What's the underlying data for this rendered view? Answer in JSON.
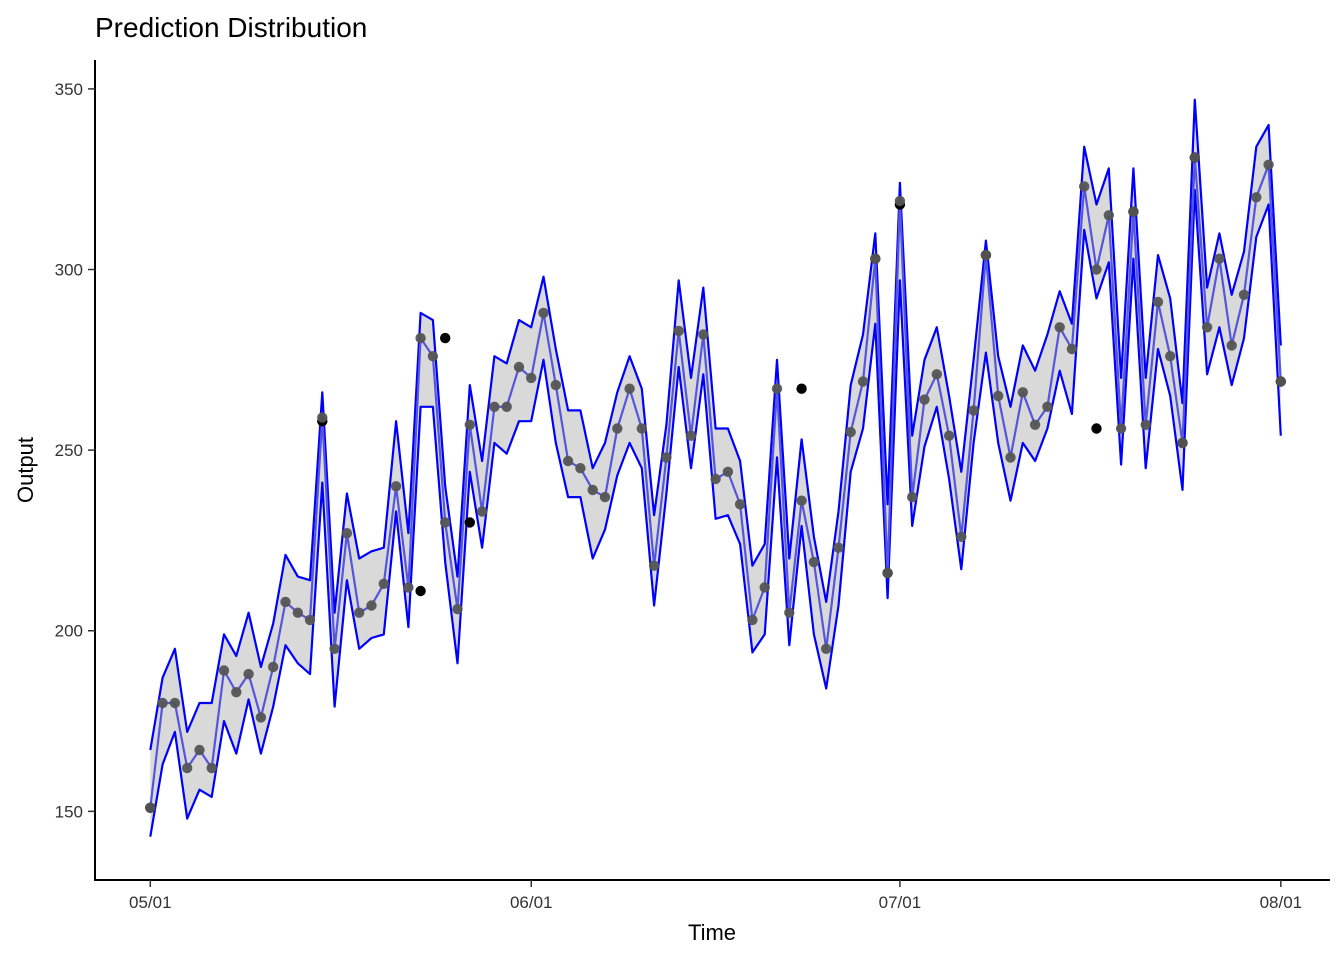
{
  "chart_data": {
    "type": "line",
    "title": "Prediction Distribution",
    "xlabel": "Time",
    "ylabel": "Output",
    "x_ticks": [
      {
        "label": "05/01",
        "day": 0
      },
      {
        "label": "06/01",
        "day": 31
      },
      {
        "label": "07/01",
        "day": 61
      },
      {
        "label": "08/01",
        "day": 92
      }
    ],
    "y_ticks": [
      150,
      200,
      250,
      300,
      350
    ],
    "ylim": [
      131,
      358
    ],
    "xlim": [
      -4.5,
      96
    ],
    "grid": false,
    "legend": "none",
    "colors": {
      "band_fill": "#d9d9d9",
      "bounds": "#0000ff",
      "prediction_line": "#5555dd",
      "predicted_point": "#555555",
      "observed_point": "#000000"
    },
    "series": [
      {
        "name": "observed",
        "points": [
          [
            0,
            151
          ],
          [
            14,
            258
          ],
          [
            22,
            211
          ],
          [
            24,
            281
          ],
          [
            26,
            230
          ],
          [
            53,
            267
          ],
          [
            59,
            303
          ],
          [
            60,
            216
          ],
          [
            61,
            318
          ],
          [
            68,
            304
          ],
          [
            77,
            256
          ],
          [
            80,
            316
          ],
          [
            84,
            252
          ],
          [
            85,
            331
          ],
          [
            92,
            269
          ]
        ]
      },
      {
        "name": "predicted",
        "values": [
          151,
          180,
          180,
          162,
          167,
          162,
          189,
          183,
          188,
          176,
          190,
          208,
          205,
          203,
          259,
          195,
          227,
          205,
          207,
          213,
          240,
          212,
          281,
          276,
          230,
          206,
          257,
          233,
          262,
          262,
          273,
          270,
          288,
          268,
          247,
          245,
          239,
          237,
          256,
          267,
          256,
          218,
          248,
          283,
          254,
          282,
          242,
          244,
          235,
          203,
          212,
          267,
          205,
          236,
          219,
          195,
          223,
          255,
          269,
          303,
          216,
          319,
          237,
          264,
          271,
          254,
          226,
          261,
          304,
          265,
          248,
          266,
          257,
          262,
          284,
          278,
          323,
          300,
          315,
          256,
          316,
          257,
          291,
          276,
          252,
          331,
          284,
          303,
          279,
          293,
          320,
          329,
          269
        ]
      },
      {
        "name": "upper",
        "values": [
          167,
          187,
          195,
          172,
          180,
          180,
          199,
          193,
          205,
          190,
          202,
          221,
          215,
          214,
          266,
          205,
          238,
          220,
          222,
          223,
          258,
          227,
          288,
          286,
          240,
          215,
          268,
          247,
          276,
          274,
          286,
          284,
          298,
          278,
          261,
          261,
          245,
          252,
          266,
          276,
          267,
          232,
          257,
          297,
          270,
          295,
          256,
          256,
          247,
          218,
          224,
          275,
          220,
          253,
          226,
          208,
          233,
          268,
          282,
          310,
          235,
          324,
          254,
          275,
          284,
          265,
          244,
          275,
          308,
          276,
          262,
          279,
          272,
          282,
          294,
          285,
          334,
          318,
          328,
          270,
          328,
          270,
          304,
          292,
          263,
          347,
          295,
          310,
          293,
          305,
          334,
          340,
          279
        ]
      },
      {
        "name": "lower",
        "values": [
          143,
          163,
          172,
          148,
          156,
          154,
          175,
          166,
          181,
          166,
          179,
          196,
          191,
          188,
          241,
          179,
          214,
          195,
          198,
          199,
          233,
          201,
          262,
          262,
          219,
          191,
          244,
          223,
          252,
          249,
          258,
          258,
          275,
          252,
          237,
          237,
          220,
          228,
          243,
          252,
          245,
          207,
          238,
          273,
          245,
          271,
          231,
          232,
          224,
          194,
          199,
          248,
          196,
          229,
          199,
          184,
          207,
          244,
          256,
          285,
          209,
          297,
          229,
          251,
          262,
          242,
          217,
          252,
          277,
          252,
          236,
          252,
          247,
          256,
          272,
          260,
          311,
          292,
          302,
          246,
          303,
          245,
          278,
          265,
          239,
          322,
          271,
          284,
          268,
          281,
          309,
          318,
          254
        ]
      }
    ]
  }
}
